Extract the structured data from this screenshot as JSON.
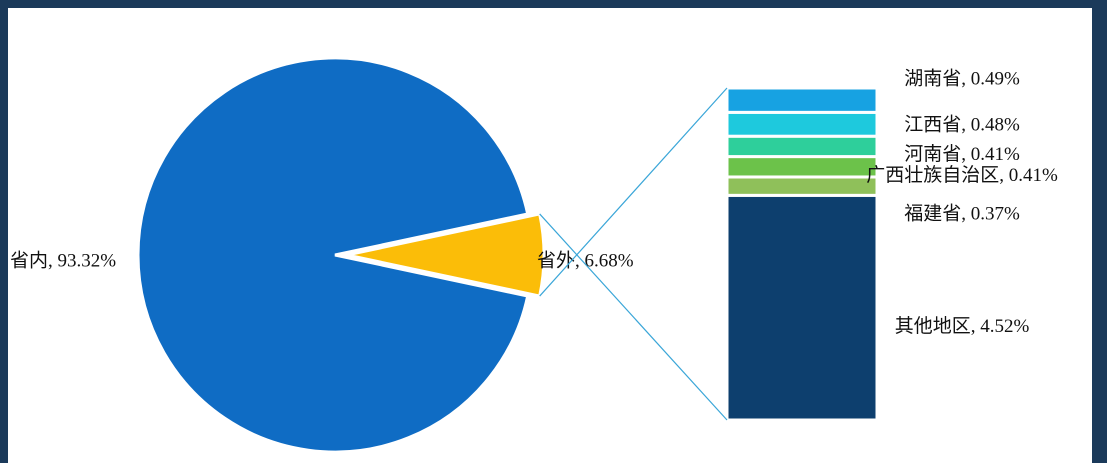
{
  "chart_data": [
    {
      "type": "pie",
      "values": [
        93.32,
        6.68
      ],
      "value_labels": [
        "省内, 93.32%",
        "省外, 6.68%"
      ],
      "colors": [
        "#0f6cc4",
        "#fbbd08"
      ]
    },
    {
      "type": "stacked-bar",
      "values": [
        4.52,
        0.37,
        0.41,
        0.41,
        0.48,
        0.49
      ],
      "value_labels": [
        "其他地区, 4.52%",
        "福建省, 0.37%",
        "广西壮族自治区, 0.41%",
        "河南省, 0.41%",
        "江西省, 0.48%",
        "湖南省, 0.49%"
      ],
      "colors": [
        "#0d3f6e",
        "#8fc05a",
        "#6cc24a",
        "#2ecf9b",
        "#1ec9dd",
        "#17a2e2"
      ]
    }
  ]
}
